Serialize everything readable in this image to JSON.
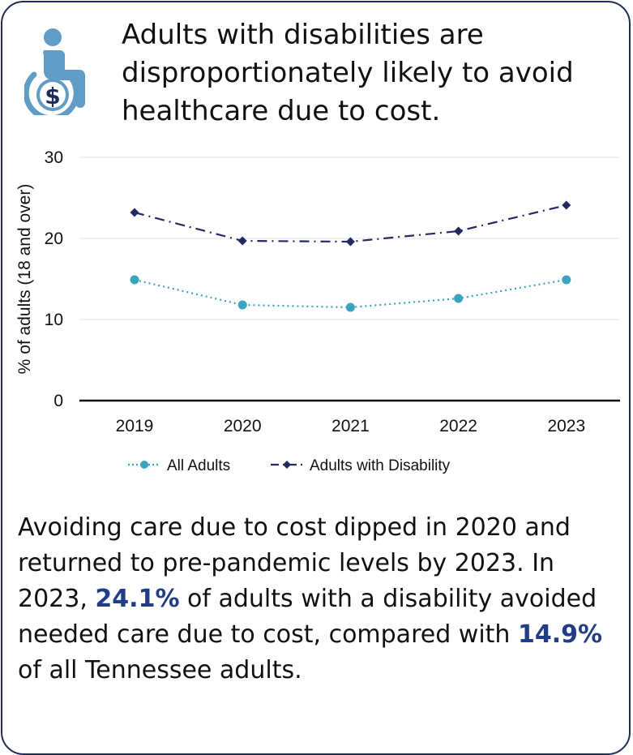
{
  "headline": "Adults with disabilities are disproportionately likely to avoid healthcare due to cost.",
  "icon": "wheelchair-dollar-icon",
  "colors": {
    "all_adults": "#3aa3bd",
    "disability": "#232a63",
    "icon": "#5f9dc7",
    "highlight": "#1f3d8a",
    "border": "#1f2d5c"
  },
  "chart_data": {
    "type": "line",
    "x": [
      "2019",
      "2020",
      "2021",
      "2022",
      "2023"
    ],
    "ylabel": "% of adults (18 and over)",
    "ylim": [
      0,
      30
    ],
    "yticks": [
      0,
      10,
      20,
      30
    ],
    "grid": true,
    "legend_position": "bottom",
    "series": [
      {
        "name": "All Adults",
        "values": [
          14.9,
          11.8,
          11.5,
          12.6,
          14.9
        ],
        "style": "dotted",
        "marker": "circle",
        "color": "#3aa3bd"
      },
      {
        "name": "Adults with Disability",
        "values": [
          23.2,
          19.7,
          19.6,
          20.9,
          24.1
        ],
        "style": "dash-dot",
        "marker": "diamond",
        "color": "#232a63"
      }
    ]
  },
  "body": {
    "part1": "Avoiding care due to cost dipped in 2020 and returned to pre-pandemic levels by 2023. In 2023, ",
    "value1": "24.1%",
    "part2": " of adults with a disability avoided needed care due to cost, compared with ",
    "value2": "14.9%",
    "part3": " of all Tennessee adults."
  }
}
